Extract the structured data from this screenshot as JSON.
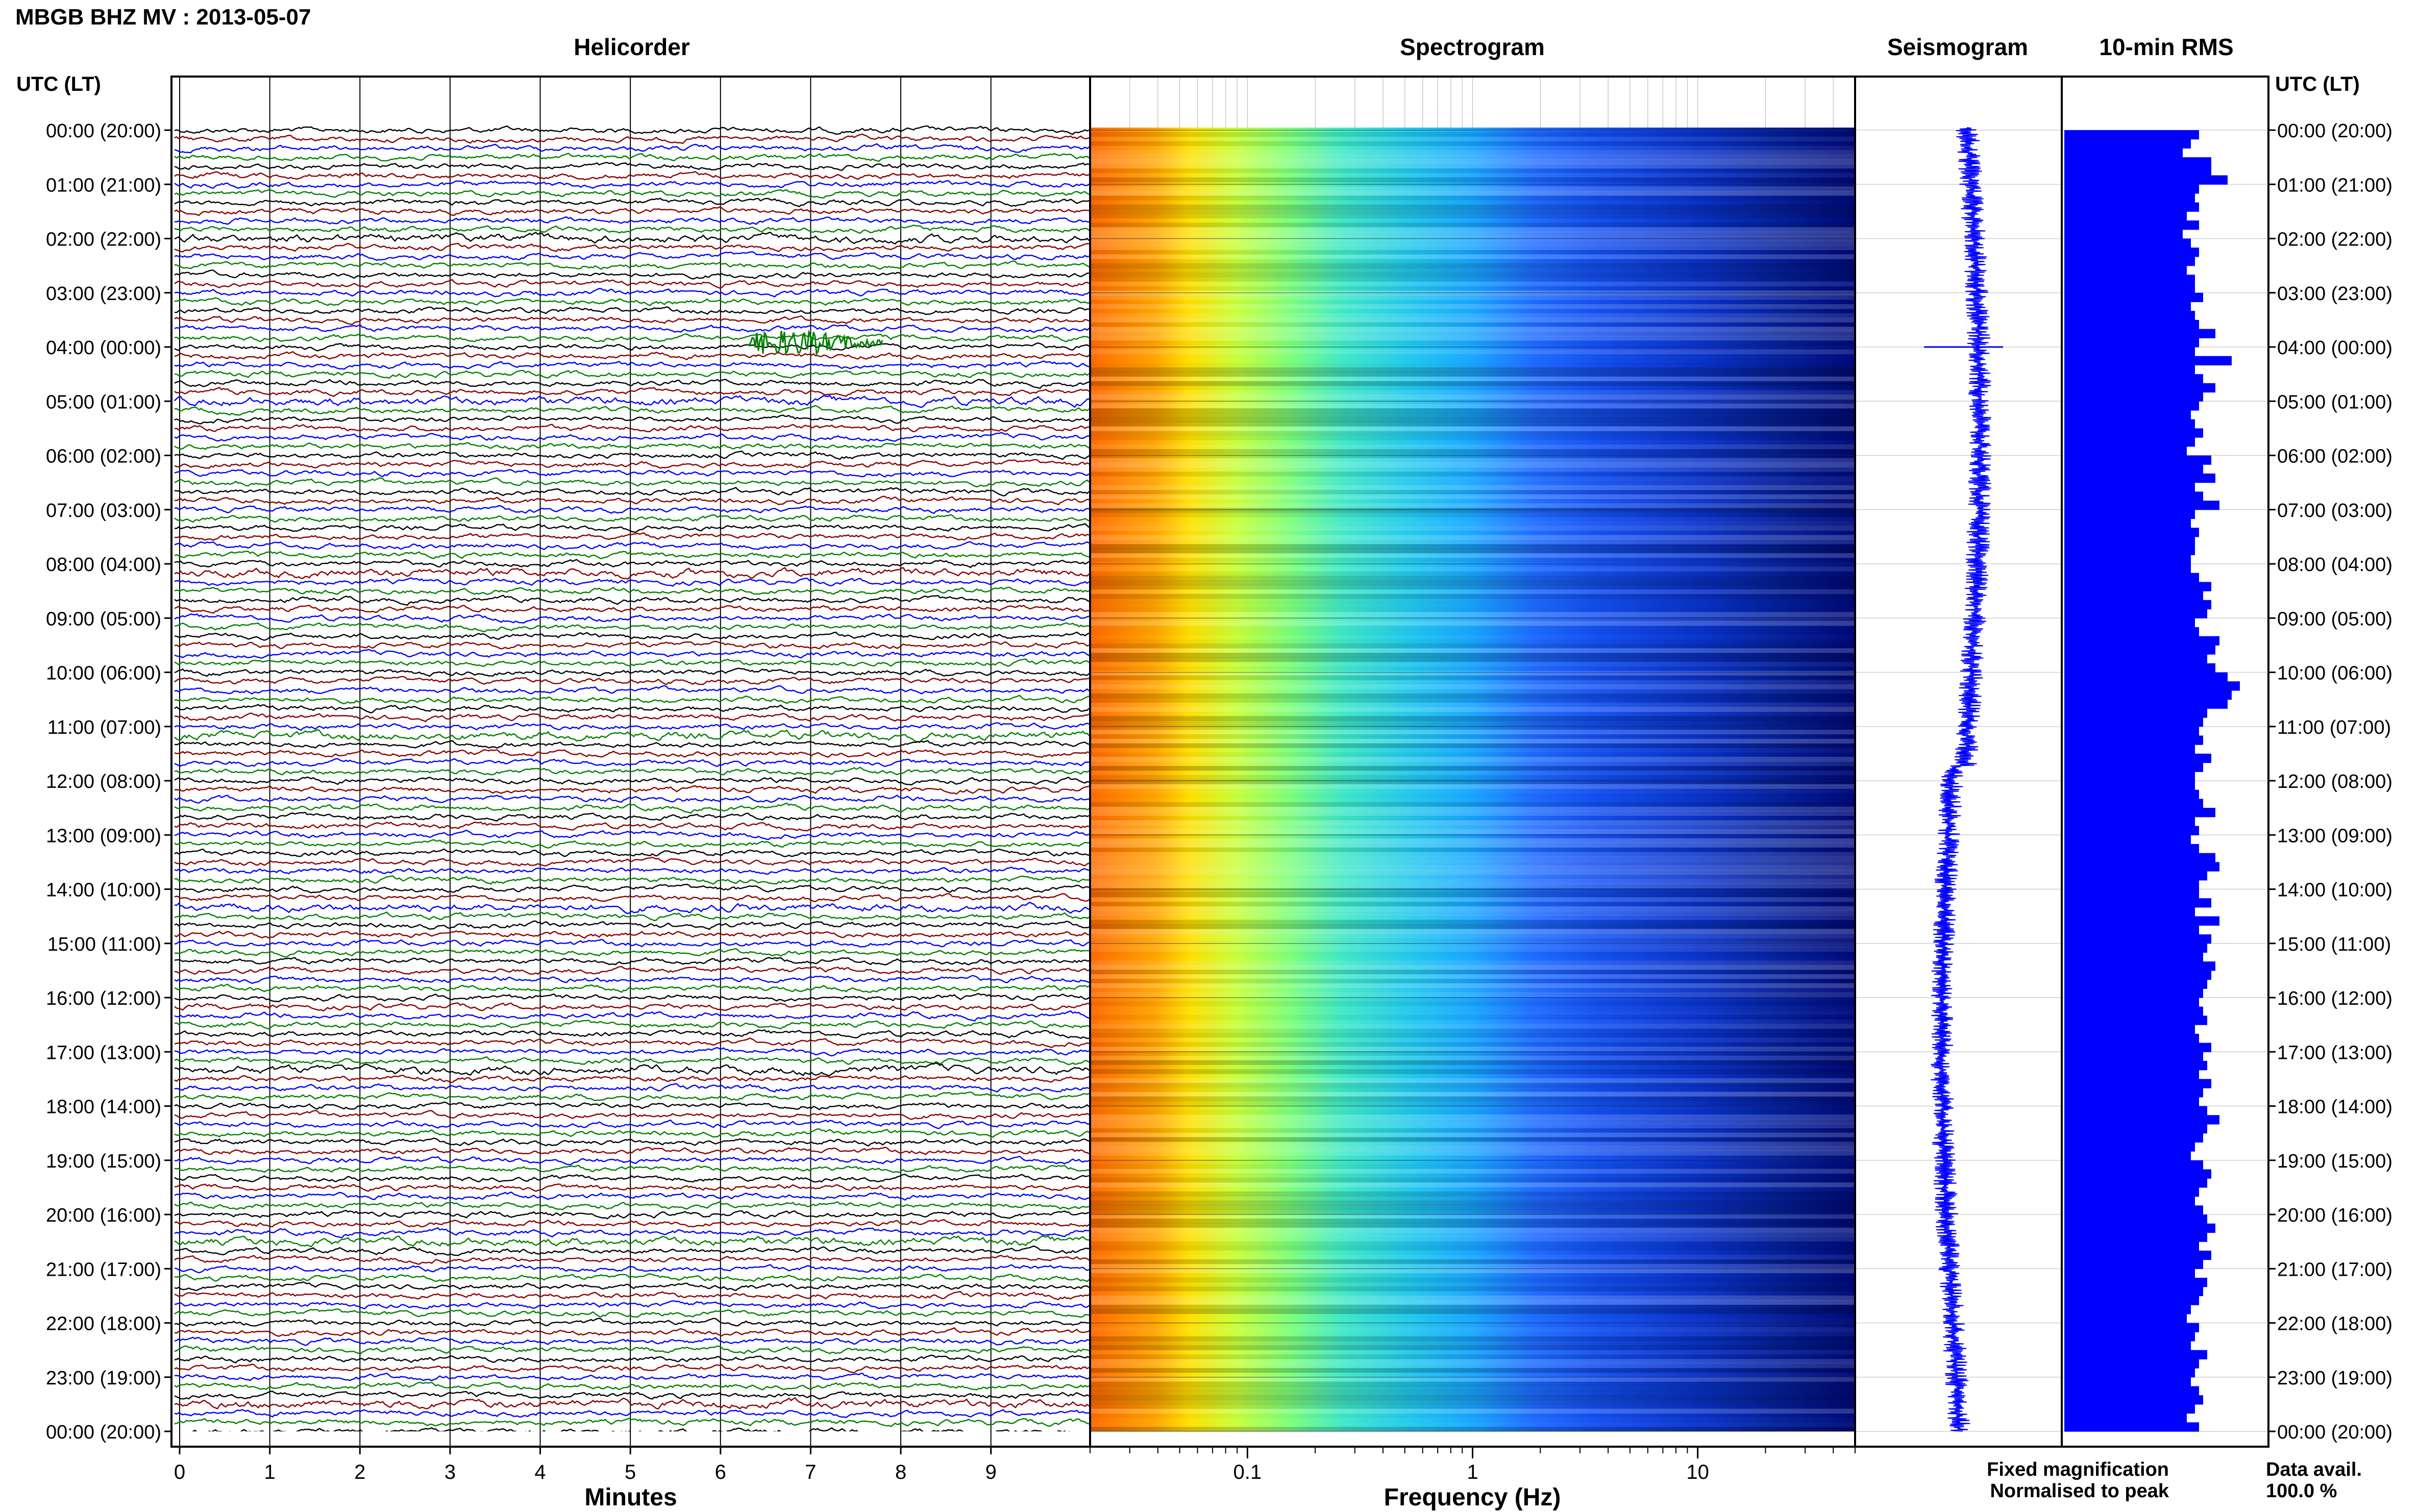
{
  "title": "MBGB BHZ MV : 2013-05-07",
  "panels": {
    "helicorder": "Helicorder",
    "spectrogram": "Spectrogram",
    "seismogram": "Seismogram",
    "rms": "10-min RMS"
  },
  "time_axis_title": "UTC (LT)",
  "time_labels": [
    "00:00 (20:00)",
    "01:00 (21:00)",
    "02:00 (22:00)",
    "03:00 (23:00)",
    "04:00 (00:00)",
    "05:00 (01:00)",
    "06:00 (02:00)",
    "07:00 (03:00)",
    "08:00 (04:00)",
    "09:00 (05:00)",
    "10:00 (06:00)",
    "11:00 (07:00)",
    "12:00 (08:00)",
    "13:00 (09:00)",
    "14:00 (10:00)",
    "15:00 (11:00)",
    "16:00 (12:00)",
    "17:00 (13:00)",
    "18:00 (14:00)",
    "19:00 (15:00)",
    "20:00 (16:00)",
    "21:00 (17:00)",
    "22:00 (18:00)",
    "23:00 (19:00)",
    "00:00 (20:00)"
  ],
  "x_axes": {
    "minutes": {
      "label": "Minutes",
      "ticks": [
        "0",
        "1",
        "2",
        "3",
        "4",
        "5",
        "6",
        "7",
        "8",
        "9"
      ]
    },
    "frequency": {
      "label": "Frequency (Hz)",
      "ticks": [
        "0.1",
        "1",
        "10"
      ]
    }
  },
  "legend": {
    "fixed": {
      "text": "Fixed magnification",
      "color": "#0000ff"
    },
    "normalised": {
      "text": "Normalised to peak",
      "color": "#ff0000"
    }
  },
  "availability": {
    "label": "Data avail.",
    "value": "100.0 %"
  },
  "trace_colors": [
    "#000000",
    "#8b0000",
    "#0000ff",
    "#008000"
  ],
  "bar_color": "#0000ff",
  "chart_data": [
    {
      "type": "line",
      "title": "Helicorder",
      "xlabel": "Minutes",
      "xlim": [
        0,
        10
      ],
      "rows_per_hour": 6,
      "hours": 24,
      "events": [
        {
          "hour": 3,
          "minute_start": 6.3,
          "minute_end": 7.8,
          "color": "#008000"
        }
      ]
    },
    {
      "type": "heatmap",
      "title": "Spectrogram",
      "xlabel": "Frequency (Hz)",
      "x_scale": "log",
      "xlim": [
        0.02,
        50
      ],
      "colormap": [
        "#00008b",
        "#0000ff",
        "#1e90ff",
        "#00ffff",
        "#adff2f",
        "#ffff00",
        "#ffa500",
        "#ff4500"
      ],
      "rows": 144
    },
    {
      "type": "line",
      "title": "Seismogram",
      "rows": 144
    },
    {
      "type": "bar",
      "title": "10-min RMS",
      "orientation": "horizontal",
      "xlim": [
        0,
        1
      ],
      "values": [
        0.66,
        0.62,
        0.58,
        0.72,
        0.72,
        0.8,
        0.66,
        0.64,
        0.66,
        0.6,
        0.66,
        0.58,
        0.62,
        0.66,
        0.64,
        0.6,
        0.64,
        0.64,
        0.68,
        0.62,
        0.64,
        0.66,
        0.74,
        0.66,
        0.64,
        0.82,
        0.64,
        0.68,
        0.74,
        0.68,
        0.66,
        0.62,
        0.64,
        0.68,
        0.64,
        0.6,
        0.72,
        0.68,
        0.74,
        0.64,
        0.68,
        0.76,
        0.64,
        0.62,
        0.66,
        0.64,
        0.64,
        0.62,
        0.62,
        0.66,
        0.72,
        0.68,
        0.72,
        0.7,
        0.64,
        0.66,
        0.76,
        0.74,
        0.7,
        0.74,
        0.8,
        0.86,
        0.82,
        0.8,
        0.7,
        0.68,
        0.66,
        0.68,
        0.64,
        0.72,
        0.68,
        0.64,
        0.64,
        0.66,
        0.68,
        0.74,
        0.64,
        0.66,
        0.62,
        0.66,
        0.74,
        0.76,
        0.7,
        0.66,
        0.66,
        0.72,
        0.64,
        0.76,
        0.66,
        0.72,
        0.7,
        0.68,
        0.74,
        0.72,
        0.7,
        0.68,
        0.66,
        0.68,
        0.7,
        0.64,
        0.66,
        0.72,
        0.68,
        0.7,
        0.66,
        0.72,
        0.68,
        0.66,
        0.7,
        0.76,
        0.7,
        0.68,
        0.64,
        0.62,
        0.68,
        0.72,
        0.7,
        0.66,
        0.64,
        0.68,
        0.7,
        0.74,
        0.7,
        0.66,
        0.72,
        0.68,
        0.64,
        0.7,
        0.68,
        0.66,
        0.62,
        0.6,
        0.66,
        0.64,
        0.62,
        0.7,
        0.66,
        0.64,
        0.62,
        0.66,
        0.68,
        0.64,
        0.6,
        0.66
      ]
    }
  ]
}
